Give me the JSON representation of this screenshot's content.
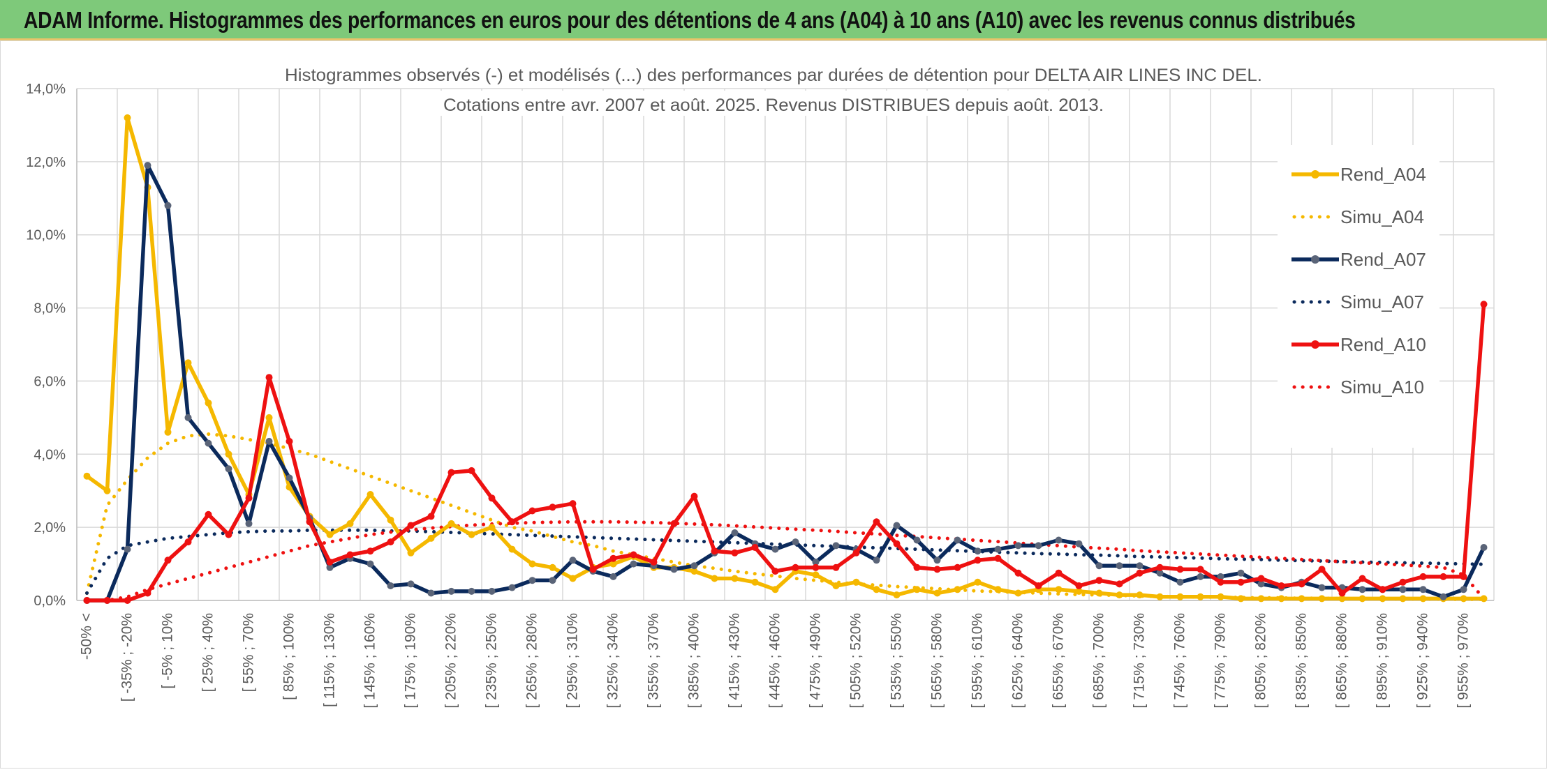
{
  "banner": {
    "title": "ADAM Informe. Histogrammes des performances en euros pour des détentions de 4 ans (A04) à 10 ans (A10) avec les revenus connus distribués"
  },
  "colors": {
    "banner_bg": "#7ec97a",
    "a04": "#f5b800",
    "a07": "#0b2a5c",
    "a07_marker": "#5a6478",
    "a10": "#ee1111",
    "grid": "#d9d9d9"
  },
  "chart_data": {
    "type": "line",
    "title_line1": "Histogrammes observés (-) et modélisés (...) des performances par durées de détention pour DELTA AIR LINES INC DEL.",
    "title_line2": "Cotations entre avr. 2007 et août. 2025. Revenus DISTRIBUES depuis août. 2013.",
    "ylim": [
      0,
      14
    ],
    "y_unit": "%",
    "y_ticks": [
      "0,0%",
      "2,0%",
      "4,0%",
      "6,0%",
      "8,0%",
      "10,0%",
      "12,0%",
      "14,0%"
    ],
    "x_tick_labels": [
      "-50% <",
      "[ -35% ; -20%",
      "[ -5% ; 10%",
      "[ 25% ; 40%",
      "[ 55% ; 70%",
      "[ 85% ; 100%",
      "[ 115% ; 130%",
      "[ 145% ; 160%",
      "[ 175% ; 190%",
      "[ 205% ; 220%",
      "[ 235% ; 250%",
      "[ 265% ; 280%",
      "[ 295% ; 310%",
      "[ 325% ; 340%",
      "[ 355% ; 370%",
      "[ 385% ; 400%",
      "[ 415% ; 430%",
      "[ 445% ; 460%",
      "[ 475% ; 490%",
      "[ 505% ; 520%",
      "[ 535% ; 550%",
      "[ 565% ; 580%",
      "[ 595% ; 610%",
      "[ 625% ; 640%",
      "[ 655% ; 670%",
      "[ 685% ; 700%",
      "[ 715% ; 730%",
      "[ 745% ; 760%",
      "[ 775% ; 790%",
      "[ 805% ; 820%",
      "[ 835% ; 850%",
      "[ 865% ; 880%",
      "[ 895% ; 910%",
      "[ 925% ; 940%",
      "[ 955% ; 970%"
    ],
    "category_count": 70,
    "legend_position": "right",
    "series": [
      {
        "name": "Rend_A04",
        "style": "solid-marker",
        "color": "#f5b800",
        "values": [
          3.4,
          3.0,
          13.2,
          11.3,
          4.6,
          6.5,
          5.4,
          4.0,
          2.9,
          5.0,
          3.1,
          2.3,
          1.8,
          2.1,
          2.9,
          2.2,
          1.3,
          1.7,
          2.1,
          1.8,
          2.0,
          1.4,
          1.0,
          0.9,
          0.6,
          0.9,
          1.0,
          1.2,
          0.9,
          0.9,
          0.8,
          0.6,
          0.6,
          0.5,
          0.3,
          0.8,
          0.7,
          0.4,
          0.5,
          0.3,
          0.15,
          0.3,
          0.2,
          0.3,
          0.5,
          0.3,
          0.2,
          0.3,
          0.3,
          0.25,
          0.2,
          0.15,
          0.15,
          0.1,
          0.1,
          0.1,
          0.1,
          0.05,
          0.05,
          0.05,
          0.05,
          0.05,
          0.05,
          0.05,
          0.05,
          0.05,
          0.05,
          0.05,
          0.05,
          0.05
        ]
      },
      {
        "name": "Simu_A04",
        "style": "dotted",
        "color": "#f5b800",
        "values": [
          0.2,
          2.6,
          3.3,
          3.9,
          4.3,
          4.5,
          4.55,
          4.5,
          4.4,
          4.3,
          4.15,
          4.0,
          3.8,
          3.6,
          3.4,
          3.2,
          3.0,
          2.8,
          2.6,
          2.4,
          2.2,
          2.0,
          1.9,
          1.75,
          1.6,
          1.5,
          1.35,
          1.25,
          1.15,
          1.05,
          0.95,
          0.88,
          0.8,
          0.73,
          0.67,
          0.6,
          0.55,
          0.5,
          0.45,
          0.42,
          0.38,
          0.35,
          0.32,
          0.29,
          0.26,
          0.24,
          0.22,
          0.2,
          0.18,
          0.16,
          0.15,
          0.14,
          0.12,
          0.11,
          0.1,
          0.09,
          0.09,
          0.08,
          0.07,
          0.07,
          0.06,
          0.06,
          0.05,
          0.05,
          0.05,
          0.04,
          0.04,
          0.04,
          0.03,
          0.03
        ]
      },
      {
        "name": "Rend_A07",
        "style": "solid-marker",
        "color": "#0b2a5c",
        "values": [
          0.0,
          0.0,
          1.4,
          11.9,
          10.8,
          5.0,
          4.3,
          3.6,
          2.1,
          4.35,
          3.35,
          2.25,
          0.9,
          1.15,
          1.0,
          0.4,
          0.45,
          0.2,
          0.25,
          0.25,
          0.25,
          0.35,
          0.55,
          0.55,
          1.1,
          0.8,
          0.65,
          1.0,
          0.95,
          0.85,
          0.95,
          1.3,
          1.85,
          1.55,
          1.4,
          1.6,
          1.05,
          1.5,
          1.4,
          1.1,
          2.05,
          1.65,
          1.1,
          1.65,
          1.35,
          1.4,
          1.5,
          1.5,
          1.65,
          1.55,
          0.95,
          0.95,
          0.95,
          0.75,
          0.5,
          0.65,
          0.65,
          0.75,
          0.45,
          0.35,
          0.5,
          0.35,
          0.35,
          0.3,
          0.3,
          0.3,
          0.3,
          0.1,
          0.3,
          1.45
        ]
      },
      {
        "name": "Simu_A07",
        "style": "dotted",
        "color": "#0b2a5c",
        "values": [
          0.2,
          1.15,
          1.5,
          1.6,
          1.7,
          1.75,
          1.8,
          1.85,
          1.88,
          1.9,
          1.9,
          1.92,
          1.92,
          1.92,
          1.92,
          1.9,
          1.9,
          1.88,
          1.86,
          1.84,
          1.82,
          1.8,
          1.78,
          1.76,
          1.74,
          1.72,
          1.7,
          1.68,
          1.66,
          1.64,
          1.62,
          1.6,
          1.58,
          1.56,
          1.54,
          1.52,
          1.5,
          1.48,
          1.46,
          1.44,
          1.42,
          1.4,
          1.38,
          1.36,
          1.34,
          1.32,
          1.3,
          1.28,
          1.27,
          1.25,
          1.24,
          1.22,
          1.2,
          1.19,
          1.17,
          1.16,
          1.14,
          1.13,
          1.12,
          1.1,
          1.09,
          1.08,
          1.06,
          1.05,
          1.04,
          1.03,
          1.02,
          1.01,
          1.0,
          0.99
        ]
      },
      {
        "name": "Rend_A10",
        "style": "solid-marker",
        "color": "#ee1111",
        "values": [
          0.0,
          0.0,
          0.0,
          0.2,
          1.1,
          1.6,
          2.35,
          1.8,
          2.8,
          6.1,
          4.35,
          2.15,
          1.05,
          1.25,
          1.35,
          1.6,
          2.05,
          2.3,
          3.5,
          3.55,
          2.8,
          2.15,
          2.45,
          2.55,
          2.65,
          0.85,
          1.15,
          1.25,
          1.05,
          2.1,
          2.85,
          1.35,
          1.3,
          1.45,
          0.8,
          0.9,
          0.9,
          0.9,
          1.3,
          2.15,
          1.55,
          0.9,
          0.85,
          0.9,
          1.1,
          1.15,
          0.75,
          0.4,
          0.75,
          0.4,
          0.55,
          0.45,
          0.75,
          0.9,
          0.85,
          0.85,
          0.5,
          0.5,
          0.6,
          0.4,
          0.45,
          0.85,
          0.2,
          0.6,
          0.3,
          0.5,
          0.65,
          0.65,
          0.65,
          8.1
        ]
      },
      {
        "name": "Simu_A10",
        "style": "dotted",
        "color": "#ee1111",
        "values": [
          0.0,
          0.0,
          0.1,
          0.3,
          0.45,
          0.6,
          0.75,
          0.9,
          1.05,
          1.2,
          1.35,
          1.5,
          1.6,
          1.7,
          1.8,
          1.87,
          1.93,
          1.98,
          2.02,
          2.06,
          2.09,
          2.11,
          2.13,
          2.14,
          2.15,
          2.15,
          2.15,
          2.14,
          2.13,
          2.11,
          2.09,
          2.07,
          2.04,
          2.01,
          1.98,
          1.95,
          1.92,
          1.89,
          1.85,
          1.82,
          1.78,
          1.75,
          1.71,
          1.68,
          1.64,
          1.61,
          1.57,
          1.53,
          1.5,
          1.46,
          1.43,
          1.4,
          1.36,
          1.33,
          1.3,
          1.27,
          1.24,
          1.21,
          1.18,
          1.15,
          1.12,
          1.09,
          1.06,
          1.03,
          1.0,
          0.97,
          0.94,
          0.9,
          0.7,
          0.05
        ]
      }
    ]
  }
}
